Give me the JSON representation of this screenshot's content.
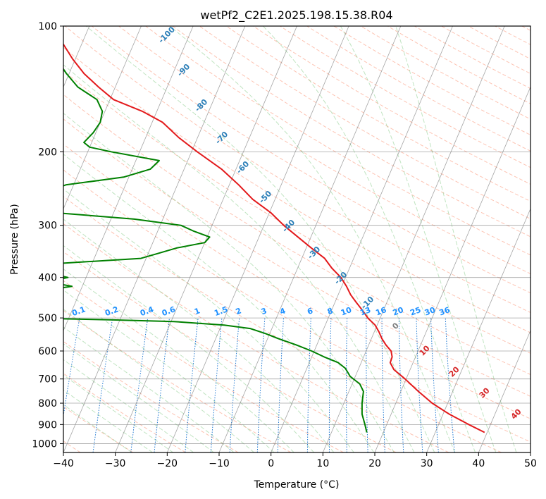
{
  "chart_data": {
    "type": "line",
    "title": "wetPf2_C2E1.2025.198.15.38.R04",
    "xlabel": "Temperature (°C)",
    "ylabel": "Pressure (hPa)",
    "xlim": [
      -40,
      50
    ],
    "ylim": [
      1050,
      100
    ],
    "y_scale": "log",
    "skew": 35,
    "grid": true,
    "x_ticks": [
      "−40",
      "−30",
      "−20",
      "−10",
      "0",
      "10",
      "20",
      "30",
      "40",
      "50"
    ],
    "x_tick_values": [
      -40,
      -30,
      -20,
      -10,
      0,
      10,
      20,
      30,
      40,
      50
    ],
    "y_ticks": [
      "100",
      "200",
      "300",
      "400",
      "500",
      "600",
      "700",
      "800",
      "900",
      "1000"
    ],
    "y_tick_values": [
      100,
      200,
      300,
      400,
      500,
      600,
      700,
      800,
      900,
      1000
    ],
    "series": [
      {
        "color": "#e31a1c",
        "kind": "temperature",
        "p": [
          940,
          900,
          850,
          800,
          750,
          700,
          665,
          640,
          620,
          600,
          580,
          560,
          540,
          520,
          500,
          480,
          460,
          440,
          420,
          400,
          380,
          360,
          340,
          320,
          300,
          280,
          260,
          240,
          220,
          200,
          185,
          170,
          160,
          150,
          140,
          130,
          120,
          110,
          105,
          100
        ],
        "t": [
          39.5,
          35.8,
          31.2,
          27.0,
          23.4,
          19.8,
          16.9,
          15.6,
          15.5,
          14.8,
          13.3,
          12.0,
          10.9,
          9.6,
          7.6,
          6.0,
          4.2,
          2.4,
          0.9,
          -0.9,
          -3.4,
          -5.6,
          -9.0,
          -12.5,
          -16.2,
          -19.7,
          -24.3,
          -28.2,
          -32.8,
          -38.9,
          -43.6,
          -48.0,
          -52.8,
          -59.3,
          -63.2,
          -67.1,
          -70.5,
          -73.7,
          -74.7,
          -75.9
        ]
      },
      {
        "color": "#008000",
        "kind": "dewpoint",
        "p": [
          940,
          900,
          850,
          800,
          750,
          720,
          690,
          660,
          640,
          620,
          600,
          580,
          560,
          545,
          530,
          520,
          510,
          505,
          500,
          495,
          490,
          480,
          470,
          450,
          430,
          420,
          410,
          400,
          390,
          385,
          380,
          370,
          360,
          350,
          340,
          330,
          320,
          310,
          300,
          290,
          280,
          270,
          260,
          250,
          240,
          230,
          220,
          210,
          200,
          195,
          190,
          180,
          170,
          160,
          150,
          140,
          130,
          120,
          110,
          100
        ],
        "t": [
          16.8,
          15.8,
          14.4,
          13.5,
          12.8,
          11.5,
          9.0,
          7.4,
          5.6,
          2.4,
          -0.5,
          -4.0,
          -8.0,
          -10.8,
          -14.2,
          -19.5,
          -29.5,
          -42.0,
          -60.0,
          -69.5,
          -74.0,
          -77.0,
          -78.0,
          -75.0,
          -57.0,
          -52.0,
          -57.0,
          -53.5,
          -58.0,
          -72.5,
          -63.0,
          -56.0,
          -41.0,
          -38.0,
          -35.0,
          -30.0,
          -29.5,
          -33.0,
          -36.0,
          -45.5,
          -61.0,
          -66.0,
          -66.0,
          -65.0,
          -61.5,
          -51.0,
          -46.5,
          -45.5,
          -55.5,
          -60.0,
          -61.5,
          -60.5,
          -60.0,
          -60.5,
          -62.5,
          -67.2,
          -70.5,
          -73.6,
          -76.5,
          -78.8
        ]
      }
    ],
    "dry_adiabat_labels": [
      "-100",
      "-90",
      "-80",
      "-70",
      "-60",
      "-50",
      "-40",
      "-30",
      "-20",
      "-10",
      "0",
      "10",
      "20",
      "30",
      "40"
    ],
    "dry_adiabat_label_temps": [
      -100,
      -90,
      -80,
      -70,
      -60,
      -50,
      -40,
      -30,
      -20,
      -10,
      0,
      10,
      20,
      30,
      40
    ],
    "mixing_ratio_labels": [
      "0.1",
      "0.2",
      "0.4",
      "0.6",
      "1",
      "1.5",
      "2",
      "3",
      "4",
      "6",
      "8",
      "10",
      "13",
      "16",
      "20",
      "25",
      "30",
      "36"
    ],
    "mixing_ratio_values": [
      0.1,
      0.2,
      0.4,
      0.6,
      1,
      1.5,
      2,
      3,
      4,
      6,
      8,
      10,
      13,
      16,
      20,
      25,
      30,
      36
    ],
    "colors": {
      "dry_adiabat_cold": "#2c7fb8",
      "dry_adiabat_zero": "#808080",
      "dry_adiabat_warm": "#d62728",
      "dry_adiabat_line": "#fc9272",
      "moist_adiabat_line": "#74c476",
      "mixing_ratio_line": "#1f78d1",
      "mixing_ratio_label": "#1e90ff",
      "isotherm": "#7f7f7f",
      "isobar": "#7f7f7f"
    }
  }
}
